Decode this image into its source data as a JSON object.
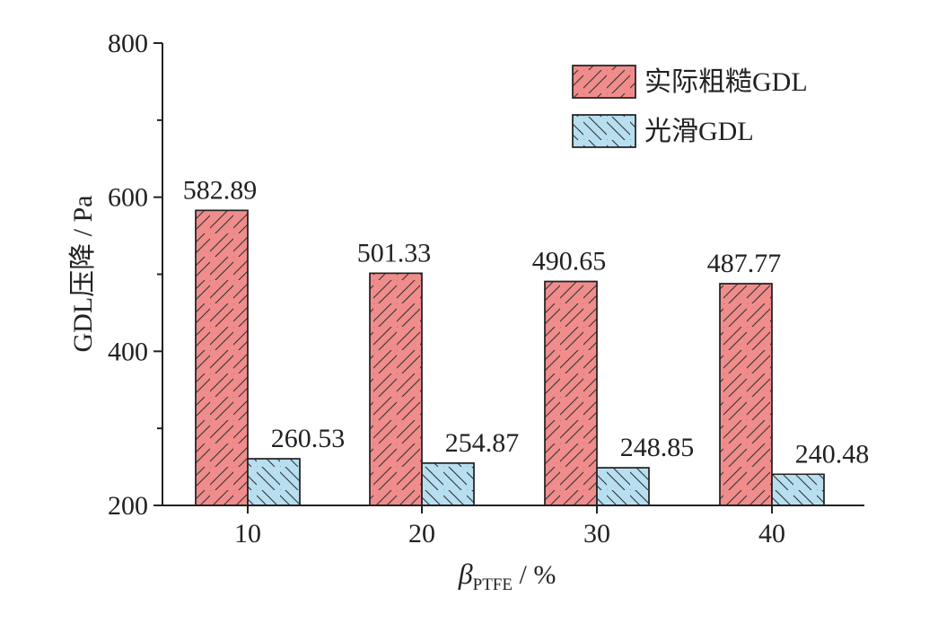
{
  "chart_data": {
    "type": "bar",
    "categories": [
      "10",
      "20",
      "30",
      "40"
    ],
    "series": [
      {
        "name": "实际粗糙GDL",
        "values": [
          582.89,
          501.33,
          490.65,
          487.77
        ],
        "color": "#f08c8c",
        "hatch": "forward"
      },
      {
        "name": "光滑GDL",
        "values": [
          260.53,
          254.87,
          248.85,
          240.48
        ],
        "color": "#b7dff0",
        "hatch": "backward"
      }
    ],
    "value_labels": [
      [
        "582.89",
        "501.33",
        "490.65",
        "487.77"
      ],
      [
        "260.53",
        "254.87",
        "248.85",
        "240.48"
      ]
    ],
    "ylim": [
      200,
      800
    ],
    "yticks": [
      "200",
      "400",
      "600",
      "800"
    ],
    "ylabel": "GDL压降 / Pa",
    "xlabel": {
      "symbol": "β",
      "subscript": "PTFE",
      "suffix": " / %"
    },
    "legend_position": "top-right",
    "grid": false
  }
}
